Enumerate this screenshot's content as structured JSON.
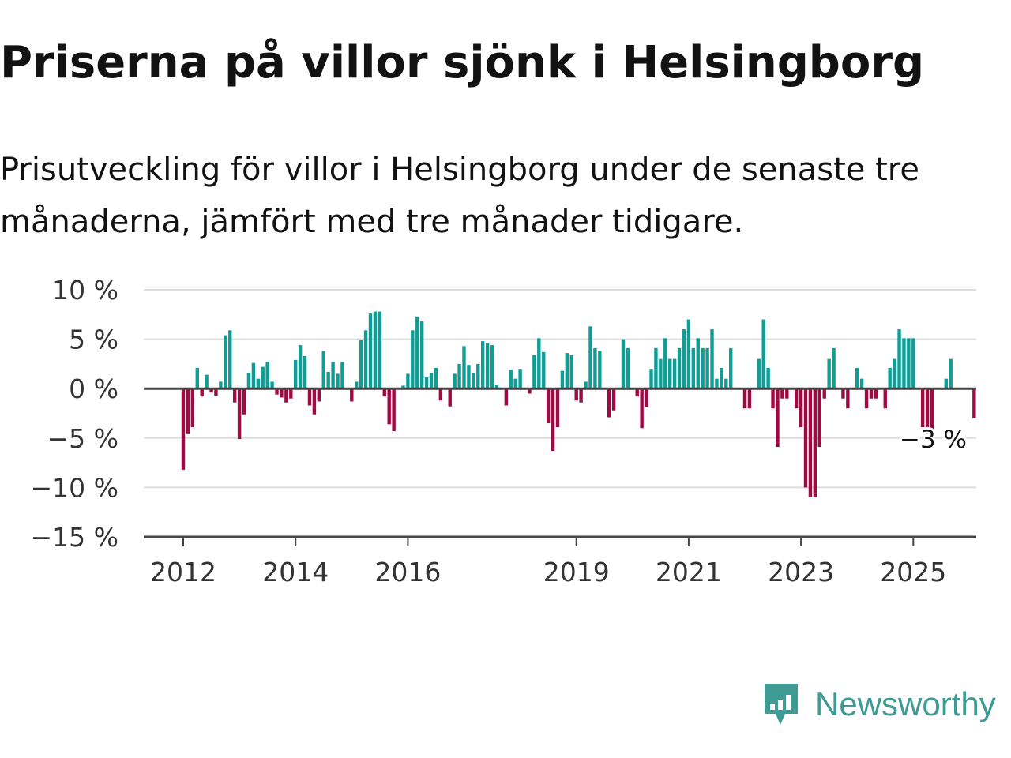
{
  "title": "Priserna på villor sjönk i Helsingborg",
  "subtitle": "Prisutveckling för villor i Helsingborg under de senaste tre månaderna, jämfört med tre månader tidigare.",
  "brand": {
    "name": "Newsworthy",
    "icon": "newsworthy-logo-icon",
    "color": "#3e9b93"
  },
  "colors": {
    "positive": "#0f9d96",
    "negative": "#9e0b42",
    "grid": "#dddddd",
    "axis": "#444444"
  },
  "chart_data": {
    "type": "bar",
    "title": "",
    "xlabel": "",
    "ylabel": "",
    "ylim": [
      -15,
      10
    ],
    "yticks": [
      10,
      5,
      0,
      -5,
      -10,
      -15
    ],
    "ytick_labels": [
      "10 %",
      "5 %",
      "0 %",
      "−5 %",
      "−10 %",
      "−15 %"
    ],
    "xticks": [
      2012,
      2014,
      2016,
      2019,
      2021,
      2023,
      2025
    ],
    "xtick_labels": [
      "2012",
      "2014",
      "2016",
      "2019",
      "2021",
      "2023",
      "2025"
    ],
    "grid": true,
    "start": "2012-01",
    "end_label": "−3 %",
    "values": [
      -8.2,
      -4.6,
      -3.9,
      2.1,
      -0.8,
      1.4,
      -0.4,
      -0.7,
      0.7,
      5.4,
      5.9,
      -1.4,
      -5.1,
      -2.6,
      1.6,
      2.6,
      1.0,
      2.2,
      2.7,
      0.7,
      -0.6,
      -0.9,
      -1.4,
      -1.0,
      2.9,
      4.4,
      3.3,
      -1.7,
      -2.6,
      -1.3,
      3.8,
      1.7,
      2.7,
      1.5,
      2.7,
      0.0,
      -1.3,
      0.7,
      4.9,
      5.9,
      7.6,
      7.8,
      7.8,
      -0.8,
      -3.6,
      -4.3,
      0.0,
      0.3,
      1.5,
      5.9,
      7.3,
      6.8,
      1.2,
      1.6,
      2.1,
      -1.2,
      0.0,
      -1.8,
      1.5,
      2.5,
      4.3,
      2.4,
      1.6,
      2.5,
      4.8,
      4.6,
      4.4,
      0.4,
      0.0,
      -1.7,
      1.9,
      1.0,
      2.0,
      0.0,
      -0.5,
      3.4,
      5.1,
      3.7,
      -3.5,
      -6.3,
      -3.9,
      1.8,
      3.6,
      3.4,
      -1.2,
      -1.4,
      0.7,
      6.3,
      4.1,
      3.8,
      0.0,
      -2.9,
      -2.2,
      0.0,
      5.0,
      4.1,
      0.0,
      -0.8,
      -4.0,
      -1.9,
      2.0,
      4.1,
      3.0,
      5.1,
      3.0,
      3.0,
      4.1,
      6.0,
      7.0,
      4.1,
      5.1,
      4.1,
      4.1,
      6.0,
      1.0,
      2.1,
      1.0,
      4.1,
      0.0,
      0.0,
      -2.0,
      -2.0,
      0.0,
      3.0,
      7.0,
      2.1,
      -2.0,
      -5.9,
      -1.0,
      -1.0,
      0.0,
      -2.0,
      -3.9,
      -10.0,
      -11.0,
      -11.0,
      -5.9,
      -1.0,
      3.0,
      4.1,
      0.0,
      -1.0,
      -2.0,
      0.0,
      2.1,
      1.0,
      -2.0,
      -1.0,
      -1.0,
      0.0,
      -2.0,
      2.1,
      3.0,
      6.0,
      5.1,
      5.1,
      5.1,
      0.0,
      -3.9,
      -4.6,
      -4.6,
      0.0,
      0.0,
      1.0,
      3.0,
      0.0,
      0.0,
      0.0,
      0.0,
      -3.0
    ]
  }
}
